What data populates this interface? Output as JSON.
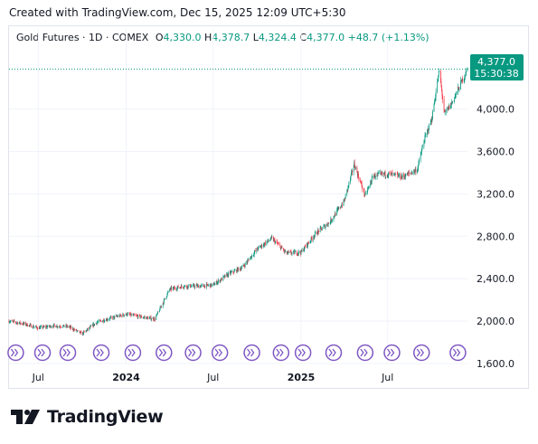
{
  "header": {
    "created_text": "Created with TradingView.com, Dec 15, 2025 12:09 UTC+5:30"
  },
  "legend": {
    "symbol": "Gold Futures · 1D · COMEX",
    "open_label": "O",
    "open": "4,330.0",
    "high_label": "H",
    "high": "4,378.7",
    "low_label": "L",
    "low": "4,324.4",
    "close_label": "C",
    "close": "4,377.0",
    "change": "+48.7 (+1.13%)"
  },
  "price_tag": {
    "price": "4,377.0",
    "time": "15:30:38"
  },
  "brand": {
    "name": "TradingView"
  },
  "colors": {
    "up": "#089981",
    "down": "#f23645",
    "grid": "#f0f3fa",
    "event": "#7e57c2",
    "text": "#131722"
  },
  "chart_data": {
    "type": "candlestick",
    "title": "Gold Futures · 1D · COMEX",
    "xlabel": "",
    "ylabel": "",
    "ylim": [
      1600,
      4500
    ],
    "yticks": [
      1600,
      2000,
      2400,
      2800,
      3200,
      3600,
      4000
    ],
    "ytick_labels": [
      "1,600.0",
      "2,000.0",
      "2,400.0",
      "2,800.0",
      "3,200.0",
      "3,600.0",
      "4,000.0"
    ],
    "xticks": [
      {
        "label": "Jul",
        "date": "2023-07"
      },
      {
        "label": "2024",
        "date": "2024-01"
      },
      {
        "label": "Jul",
        "date": "2024-07"
      },
      {
        "label": "2025",
        "date": "2025-01"
      },
      {
        "label": "Jul",
        "date": "2025-07"
      }
    ],
    "x_range": [
      "2023-05-01",
      "2025-12-15"
    ],
    "last_price": 4377.0,
    "price_path": [
      {
        "date": "2023-05-01",
        "price": 2000
      },
      {
        "date": "2023-06-01",
        "price": 1975
      },
      {
        "date": "2023-07-01",
        "price": 1935
      },
      {
        "date": "2023-08-01",
        "price": 1955
      },
      {
        "date": "2023-09-01",
        "price": 1950
      },
      {
        "date": "2023-10-01",
        "price": 1880
      },
      {
        "date": "2023-11-01",
        "price": 1990
      },
      {
        "date": "2023-12-01",
        "price": 2030
      },
      {
        "date": "2024-01-01",
        "price": 2065
      },
      {
        "date": "2024-02-01",
        "price": 2040
      },
      {
        "date": "2024-03-01",
        "price": 2020
      },
      {
        "date": "2024-04-01",
        "price": 2300
      },
      {
        "date": "2024-05-01",
        "price": 2330
      },
      {
        "date": "2024-06-01",
        "price": 2330
      },
      {
        "date": "2024-07-01",
        "price": 2340
      },
      {
        "date": "2024-08-01",
        "price": 2440
      },
      {
        "date": "2024-09-01",
        "price": 2510
      },
      {
        "date": "2024-10-01",
        "price": 2680
      },
      {
        "date": "2024-11-01",
        "price": 2780
      },
      {
        "date": "2024-12-01",
        "price": 2640
      },
      {
        "date": "2025-01-01",
        "price": 2650
      },
      {
        "date": "2025-02-01",
        "price": 2830
      },
      {
        "date": "2025-03-01",
        "price": 2930
      },
      {
        "date": "2025-04-01",
        "price": 3130
      },
      {
        "date": "2025-04-22",
        "price": 3480
      },
      {
        "date": "2025-05-15",
        "price": 3180
      },
      {
        "date": "2025-06-01",
        "price": 3370
      },
      {
        "date": "2025-07-01",
        "price": 3390
      },
      {
        "date": "2025-08-01",
        "price": 3360
      },
      {
        "date": "2025-09-01",
        "price": 3430
      },
      {
        "date": "2025-09-15",
        "price": 3700
      },
      {
        "date": "2025-10-01",
        "price": 3900
      },
      {
        "date": "2025-10-17",
        "price": 4360
      },
      {
        "date": "2025-10-28",
        "price": 3950
      },
      {
        "date": "2025-11-15",
        "price": 4080
      },
      {
        "date": "2025-12-01",
        "price": 4240
      },
      {
        "date": "2025-12-15",
        "price": 4377
      }
    ],
    "event_markers": [
      "2023-05-15",
      "2023-07-10",
      "2023-09-01",
      "2023-11-10",
      "2024-01-15",
      "2024-03-20",
      "2024-05-20",
      "2024-07-15",
      "2024-09-20",
      "2024-11-20",
      "2025-01-05",
      "2025-03-10",
      "2025-05-15",
      "2025-07-10",
      "2025-09-10",
      "2025-11-25"
    ]
  }
}
